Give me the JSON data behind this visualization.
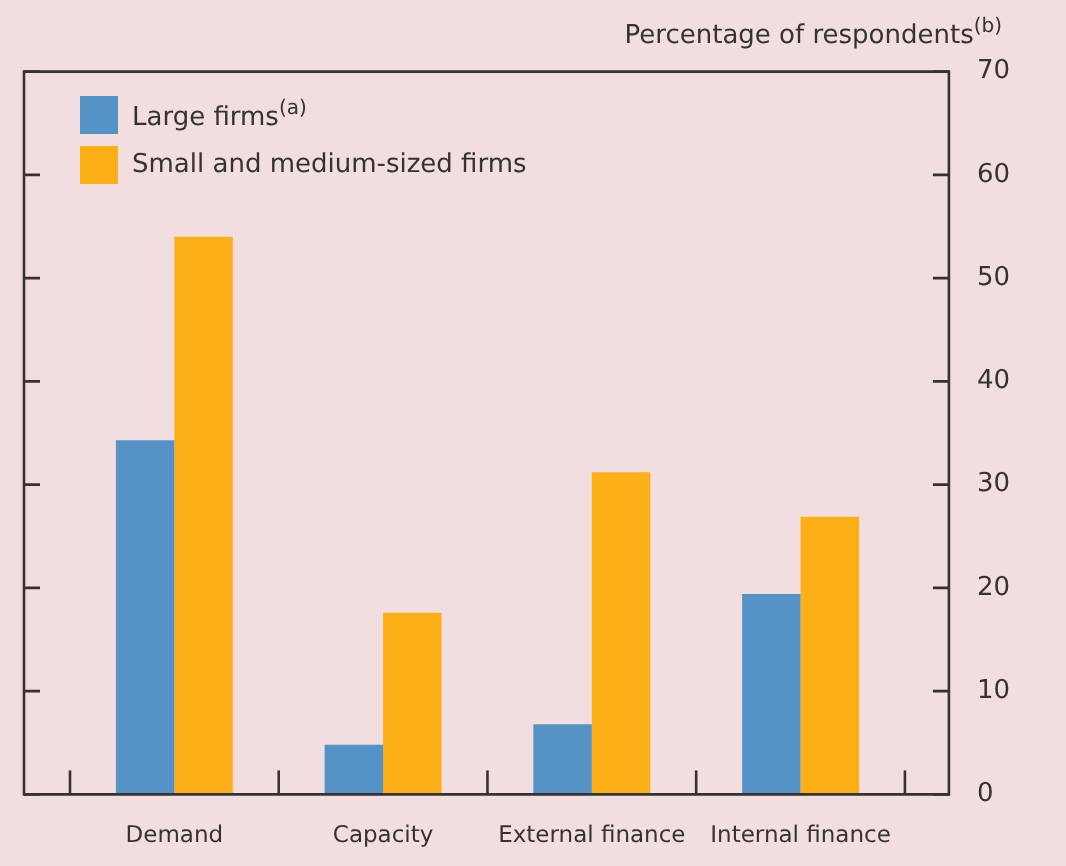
{
  "chart_data": {
    "type": "bar",
    "ylabel": "Percentage of respondents$^{(b)}$",
    "categories": [
      "Demand",
      "Capacity",
      "External finance",
      "Internal finance"
    ],
    "series": [
      {
        "name": "Large firms$^{(a)}$",
        "color": "#5593c6",
        "values": [
          34.3,
          4.8,
          6.8,
          19.4
        ]
      },
      {
        "name": "Small and medium-sized firms",
        "color": "#fcaf17",
        "values": [
          54,
          17.6,
          31.2,
          26.9
        ]
      }
    ],
    "ylim": [
      0,
      70
    ],
    "yticks": [
      0,
      10,
      20,
      30,
      40,
      50,
      60,
      70
    ],
    "grid": false,
    "legend": "top left"
  }
}
